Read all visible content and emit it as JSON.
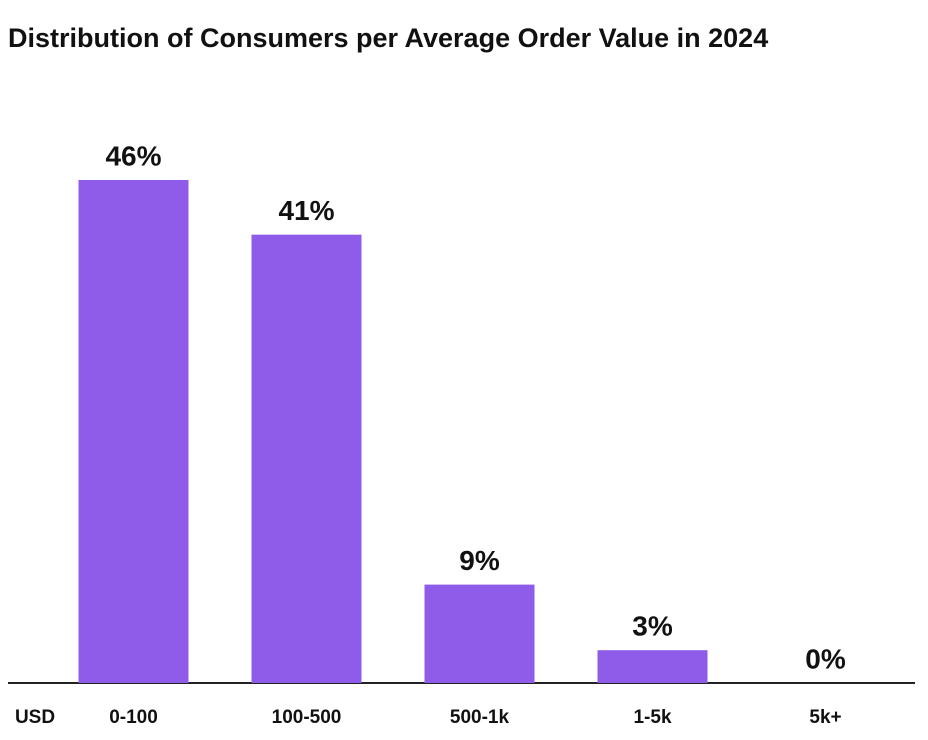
{
  "chart_data": {
    "type": "bar",
    "title": "Distribution of Consumers per Average Order Value in 2024",
    "x_label": "USD",
    "categories": [
      "0-100",
      "100-500",
      "500-1k",
      "1-5k",
      "5k+"
    ],
    "values": [
      46,
      41,
      9,
      3,
      0
    ],
    "value_labels": [
      "46%",
      "41%",
      "9%",
      "3%",
      "0%"
    ],
    "color": "#8e5ce8"
  }
}
